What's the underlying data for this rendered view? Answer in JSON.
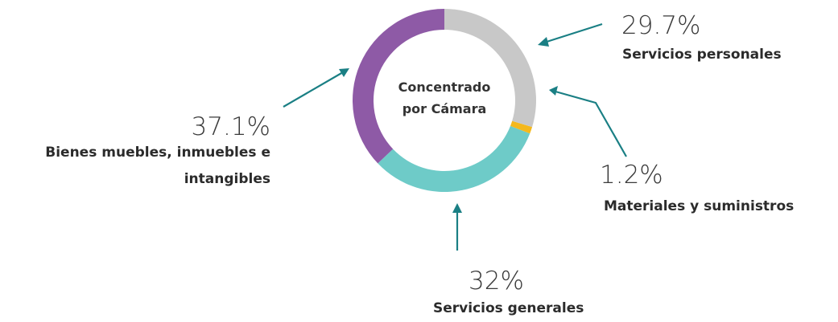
{
  "chart_data": {
    "type": "donut",
    "center_label": [
      "Concentrado",
      "por Cámara"
    ],
    "categories": [
      "Servicios personales",
      "Materiales y suministros",
      "Servicios generales",
      "Bienes muebles, inmuebles e intangibles"
    ],
    "values": [
      29.7,
      1.2,
      32,
      37.1
    ],
    "value_labels": [
      "29.7%",
      "1.2%",
      "32%",
      "37.1%"
    ],
    "colors": [
      "#c8c8c8",
      "#f4b81c",
      "#6ecbc8",
      "#8e5aa6"
    ]
  }
}
